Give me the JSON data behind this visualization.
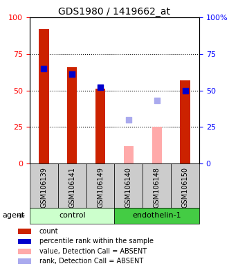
{
  "title": "GDS1980 / 1419662_at",
  "samples": [
    "GSM106139",
    "GSM106141",
    "GSM106149",
    "GSM106140",
    "GSM106148",
    "GSM106150"
  ],
  "red_bars": [
    92,
    66,
    51,
    null,
    null,
    57
  ],
  "pink_bars": [
    null,
    null,
    null,
    12,
    25,
    null
  ],
  "blue_squares": [
    65,
    61,
    52,
    null,
    null,
    50
  ],
  "lavender_squares": [
    null,
    null,
    null,
    30,
    43,
    null
  ],
  "ylim": [
    0,
    100
  ],
  "yticks": [
    0,
    25,
    50,
    75,
    100
  ],
  "bar_width": 0.35,
  "red_color": "#cc2200",
  "pink_color": "#ffaaaa",
  "blue_color": "#0000cc",
  "lavender_color": "#aaaaee",
  "control_bg": "#ccffcc",
  "endothelin_bg": "#44cc44",
  "label_bg": "#cccccc",
  "legend_items": [
    {
      "label": "count",
      "color": "#cc2200"
    },
    {
      "label": "percentile rank within the sample",
      "color": "#0000cc"
    },
    {
      "label": "value, Detection Call = ABSENT",
      "color": "#ffaaaa"
    },
    {
      "label": "rank, Detection Call = ABSENT",
      "color": "#aaaaee"
    }
  ]
}
